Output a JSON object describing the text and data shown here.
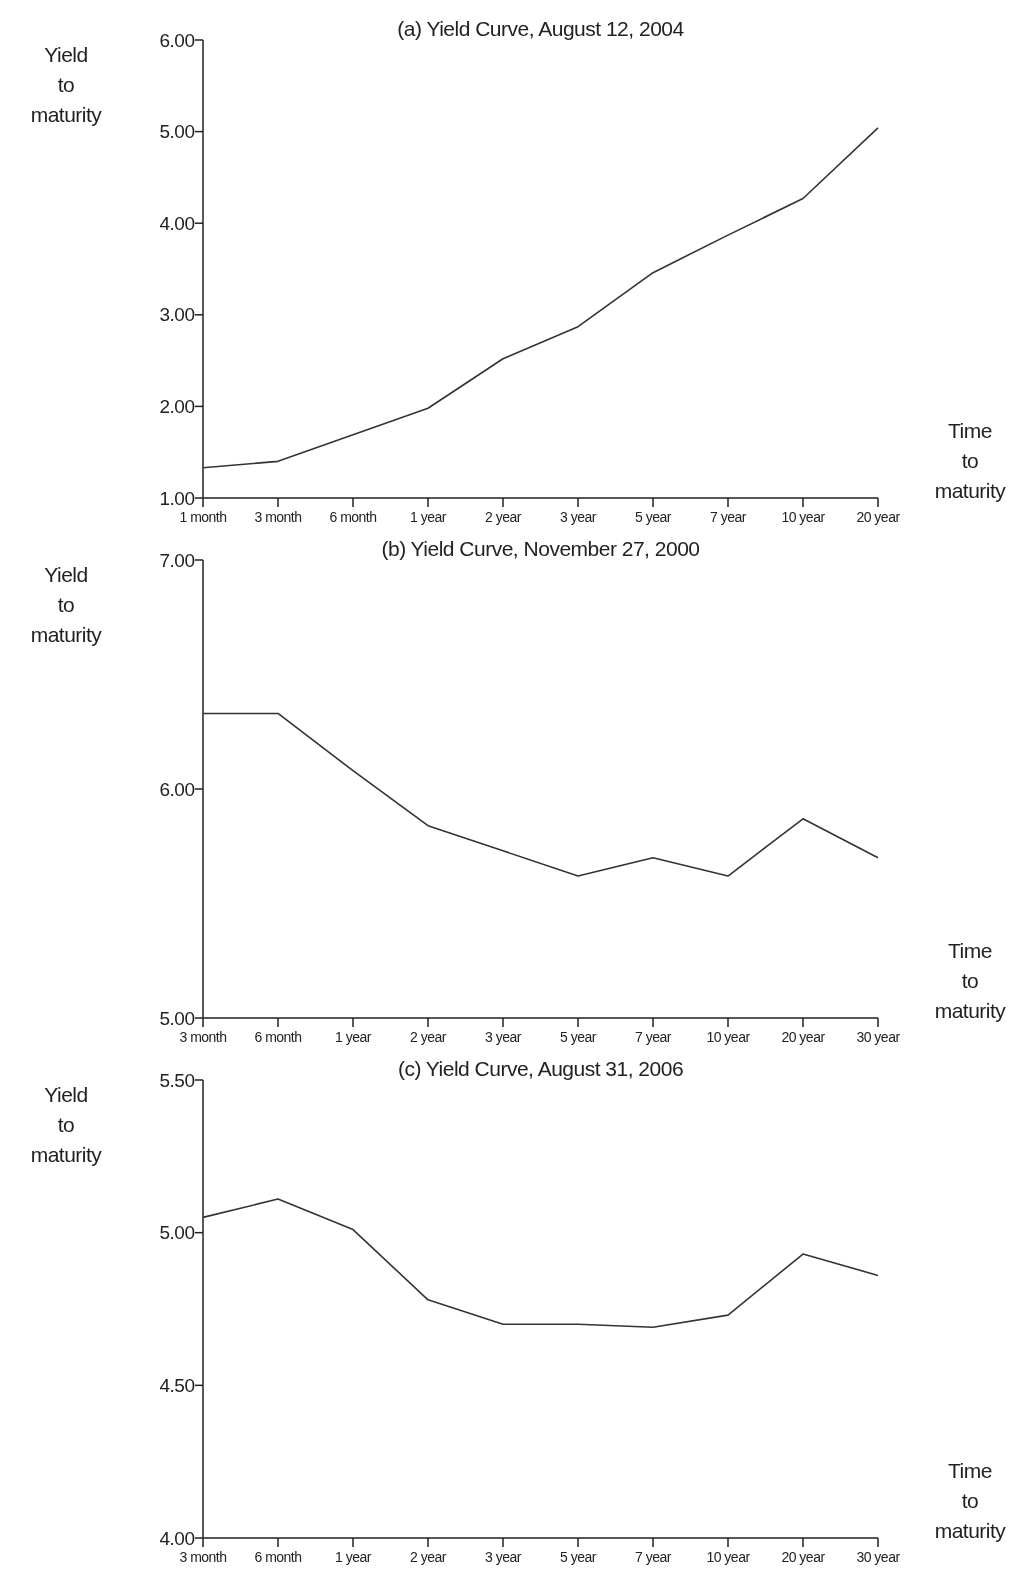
{
  "chart_data": [
    {
      "type": "line",
      "title": "(a) Yield Curve, August 12, 2004",
      "ylabel": "Yield to maturity",
      "xlabel": "Time to maturity",
      "categories": [
        "1 month",
        "3 month",
        "6 month",
        "1 year",
        "2 year",
        "3 year",
        "5 year",
        "7 year",
        "10 year",
        "20 year"
      ],
      "values": [
        1.33,
        1.4,
        1.69,
        1.98,
        2.52,
        2.87,
        3.46,
        3.87,
        4.27,
        5.04
      ],
      "color": "#333333",
      "ylim": [
        1,
        6
      ],
      "yticks": [
        {
          "value": 1,
          "label": "1.00"
        },
        {
          "value": 2,
          "label": "2.00"
        },
        {
          "value": 3,
          "label": "3.00"
        },
        {
          "value": 4,
          "label": "4.00"
        },
        {
          "value": 5,
          "label": "5.00"
        },
        {
          "value": 6,
          "label": "6.00"
        }
      ]
    },
    {
      "type": "line",
      "title": "(b) Yield Curve, November 27, 2000",
      "ylabel": "Yield to maturity",
      "xlabel": "Time to maturity",
      "categories": [
        "3 month",
        "6 month",
        "1 year",
        "2 year",
        "3 year",
        "5 year",
        "7 year",
        "10 year",
        "20 year",
        "30 year"
      ],
      "values": [
        6.33,
        6.33,
        6.08,
        5.84,
        5.73,
        5.62,
        5.7,
        5.62,
        5.87,
        5.7
      ],
      "color": "#333333",
      "ylim": [
        5,
        7
      ],
      "yticks": [
        {
          "value": 5,
          "label": "5.00"
        },
        {
          "value": 6,
          "label": "6.00"
        },
        {
          "value": 7,
          "label": "7.00"
        }
      ]
    },
    {
      "type": "line",
      "title": "(c) Yield Curve, August 31, 2006",
      "ylabel": "Yield to maturity",
      "xlabel": "Time to maturity",
      "categories": [
        "3 month",
        "6 month",
        "1 year",
        "2 year",
        "3 year",
        "5 year",
        "7 year",
        "10 year",
        "20 year",
        "30 year"
      ],
      "values": [
        5.05,
        5.11,
        5.01,
        4.78,
        4.7,
        4.7,
        4.69,
        4.73,
        4.93,
        4.86
      ],
      "color": "#333333",
      "ylim": [
        4,
        5.5
      ],
      "yticks": [
        {
          "value": 4,
          "label": "4.00"
        },
        {
          "value": 4.5,
          "label": "4.50"
        },
        {
          "value": 5,
          "label": "5.00"
        },
        {
          "value": 5.5,
          "label": "5.50"
        }
      ]
    }
  ]
}
